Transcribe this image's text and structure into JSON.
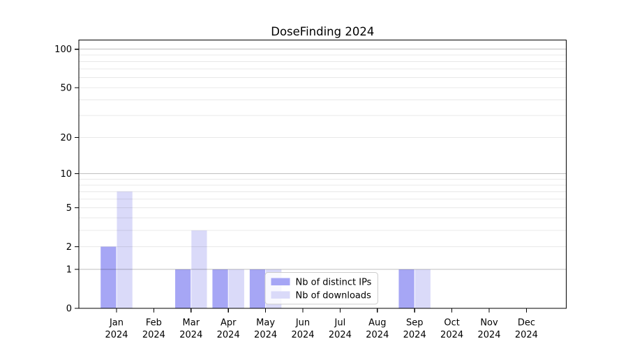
{
  "figure": {
    "title": "DoseFinding 2024",
    "background": "#ffffff"
  },
  "chart_data": {
    "type": "bar",
    "title": "DoseFinding 2024",
    "xlabel": "",
    "ylabel": "",
    "yscale": "log1p",
    "ylim": [
      0,
      118
    ],
    "grid": true,
    "legend_position": "inside-bottom-center",
    "ytick_values": [
      0,
      1,
      2,
      5,
      10,
      20,
      50,
      100
    ],
    "ytick_labels": [
      "0",
      "1",
      "2",
      "5",
      "10",
      "20",
      "50",
      "100"
    ],
    "major_gridlines": [
      1,
      10,
      100
    ],
    "minor_gridlines": [
      2,
      3,
      4,
      5,
      6,
      7,
      8,
      9,
      20,
      30,
      40,
      50,
      60,
      70,
      80,
      90
    ],
    "categories": [
      {
        "month": "Jan",
        "year": "2024"
      },
      {
        "month": "Feb",
        "year": "2024"
      },
      {
        "month": "Mar",
        "year": "2024"
      },
      {
        "month": "Apr",
        "year": "2024"
      },
      {
        "month": "May",
        "year": "2024"
      },
      {
        "month": "Jun",
        "year": "2024"
      },
      {
        "month": "Jul",
        "year": "2024"
      },
      {
        "month": "Aug",
        "year": "2024"
      },
      {
        "month": "Sep",
        "year": "2024"
      },
      {
        "month": "Oct",
        "year": "2024"
      },
      {
        "month": "Nov",
        "year": "2024"
      },
      {
        "month": "Dec",
        "year": "2024"
      }
    ],
    "series": [
      {
        "name": "Nb of distinct IPs",
        "color": "#a6a6f5",
        "values": [
          2,
          0,
          1,
          1,
          1,
          0,
          0,
          0,
          1,
          0,
          0,
          0
        ]
      },
      {
        "name": "Nb of downloads",
        "color": "#dadaf9",
        "values": [
          7,
          0,
          3,
          1,
          1,
          0,
          0,
          0,
          1,
          0,
          0,
          0
        ]
      }
    ],
    "colors": {
      "major_grid": "rgba(0,0,0,0.25)",
      "minor_grid": "rgba(0,0,0,0.09)",
      "spine": "#000000",
      "legend_border": "#cccccc",
      "legend_background": "rgba(255,255,255,0.8)"
    }
  }
}
